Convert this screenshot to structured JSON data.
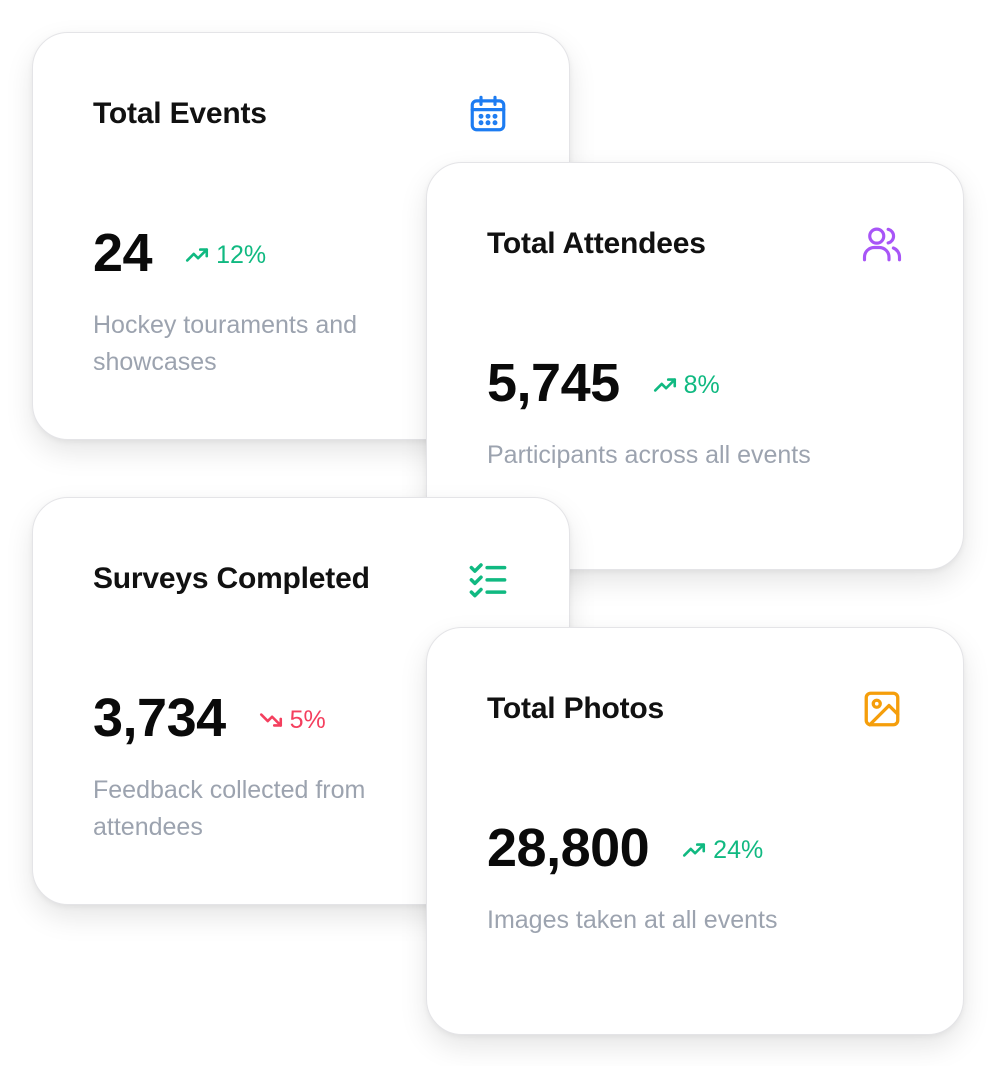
{
  "cards": [
    {
      "title": "Total Events",
      "icon": "calendar-icon",
      "icon_color": "#1d7cf2",
      "value": "24",
      "trend": "12%",
      "trend_direction": "up",
      "description": "Hockey touraments and showcases"
    },
    {
      "title": "Total Attendees",
      "icon": "users-icon",
      "icon_color": "#a855f7",
      "value": "5,745",
      "trend": "8%",
      "trend_direction": "up",
      "description": "Participants across all events"
    },
    {
      "title": "Surveys Completed",
      "icon": "checklist-icon",
      "icon_color": "#10b981",
      "value": "3,734",
      "trend": "5%",
      "trend_direction": "down",
      "description": "Feedback collected from attendees"
    },
    {
      "title": "Total Photos",
      "icon": "image-icon",
      "icon_color": "#f59e0b",
      "value": "28,800",
      "trend": "24%",
      "trend_direction": "up",
      "description": "Images taken at all events"
    }
  ],
  "colors": {
    "trend_up": "#10b981",
    "trend_down": "#f43f5e",
    "title": "#111111",
    "description": "#9ca3af"
  }
}
